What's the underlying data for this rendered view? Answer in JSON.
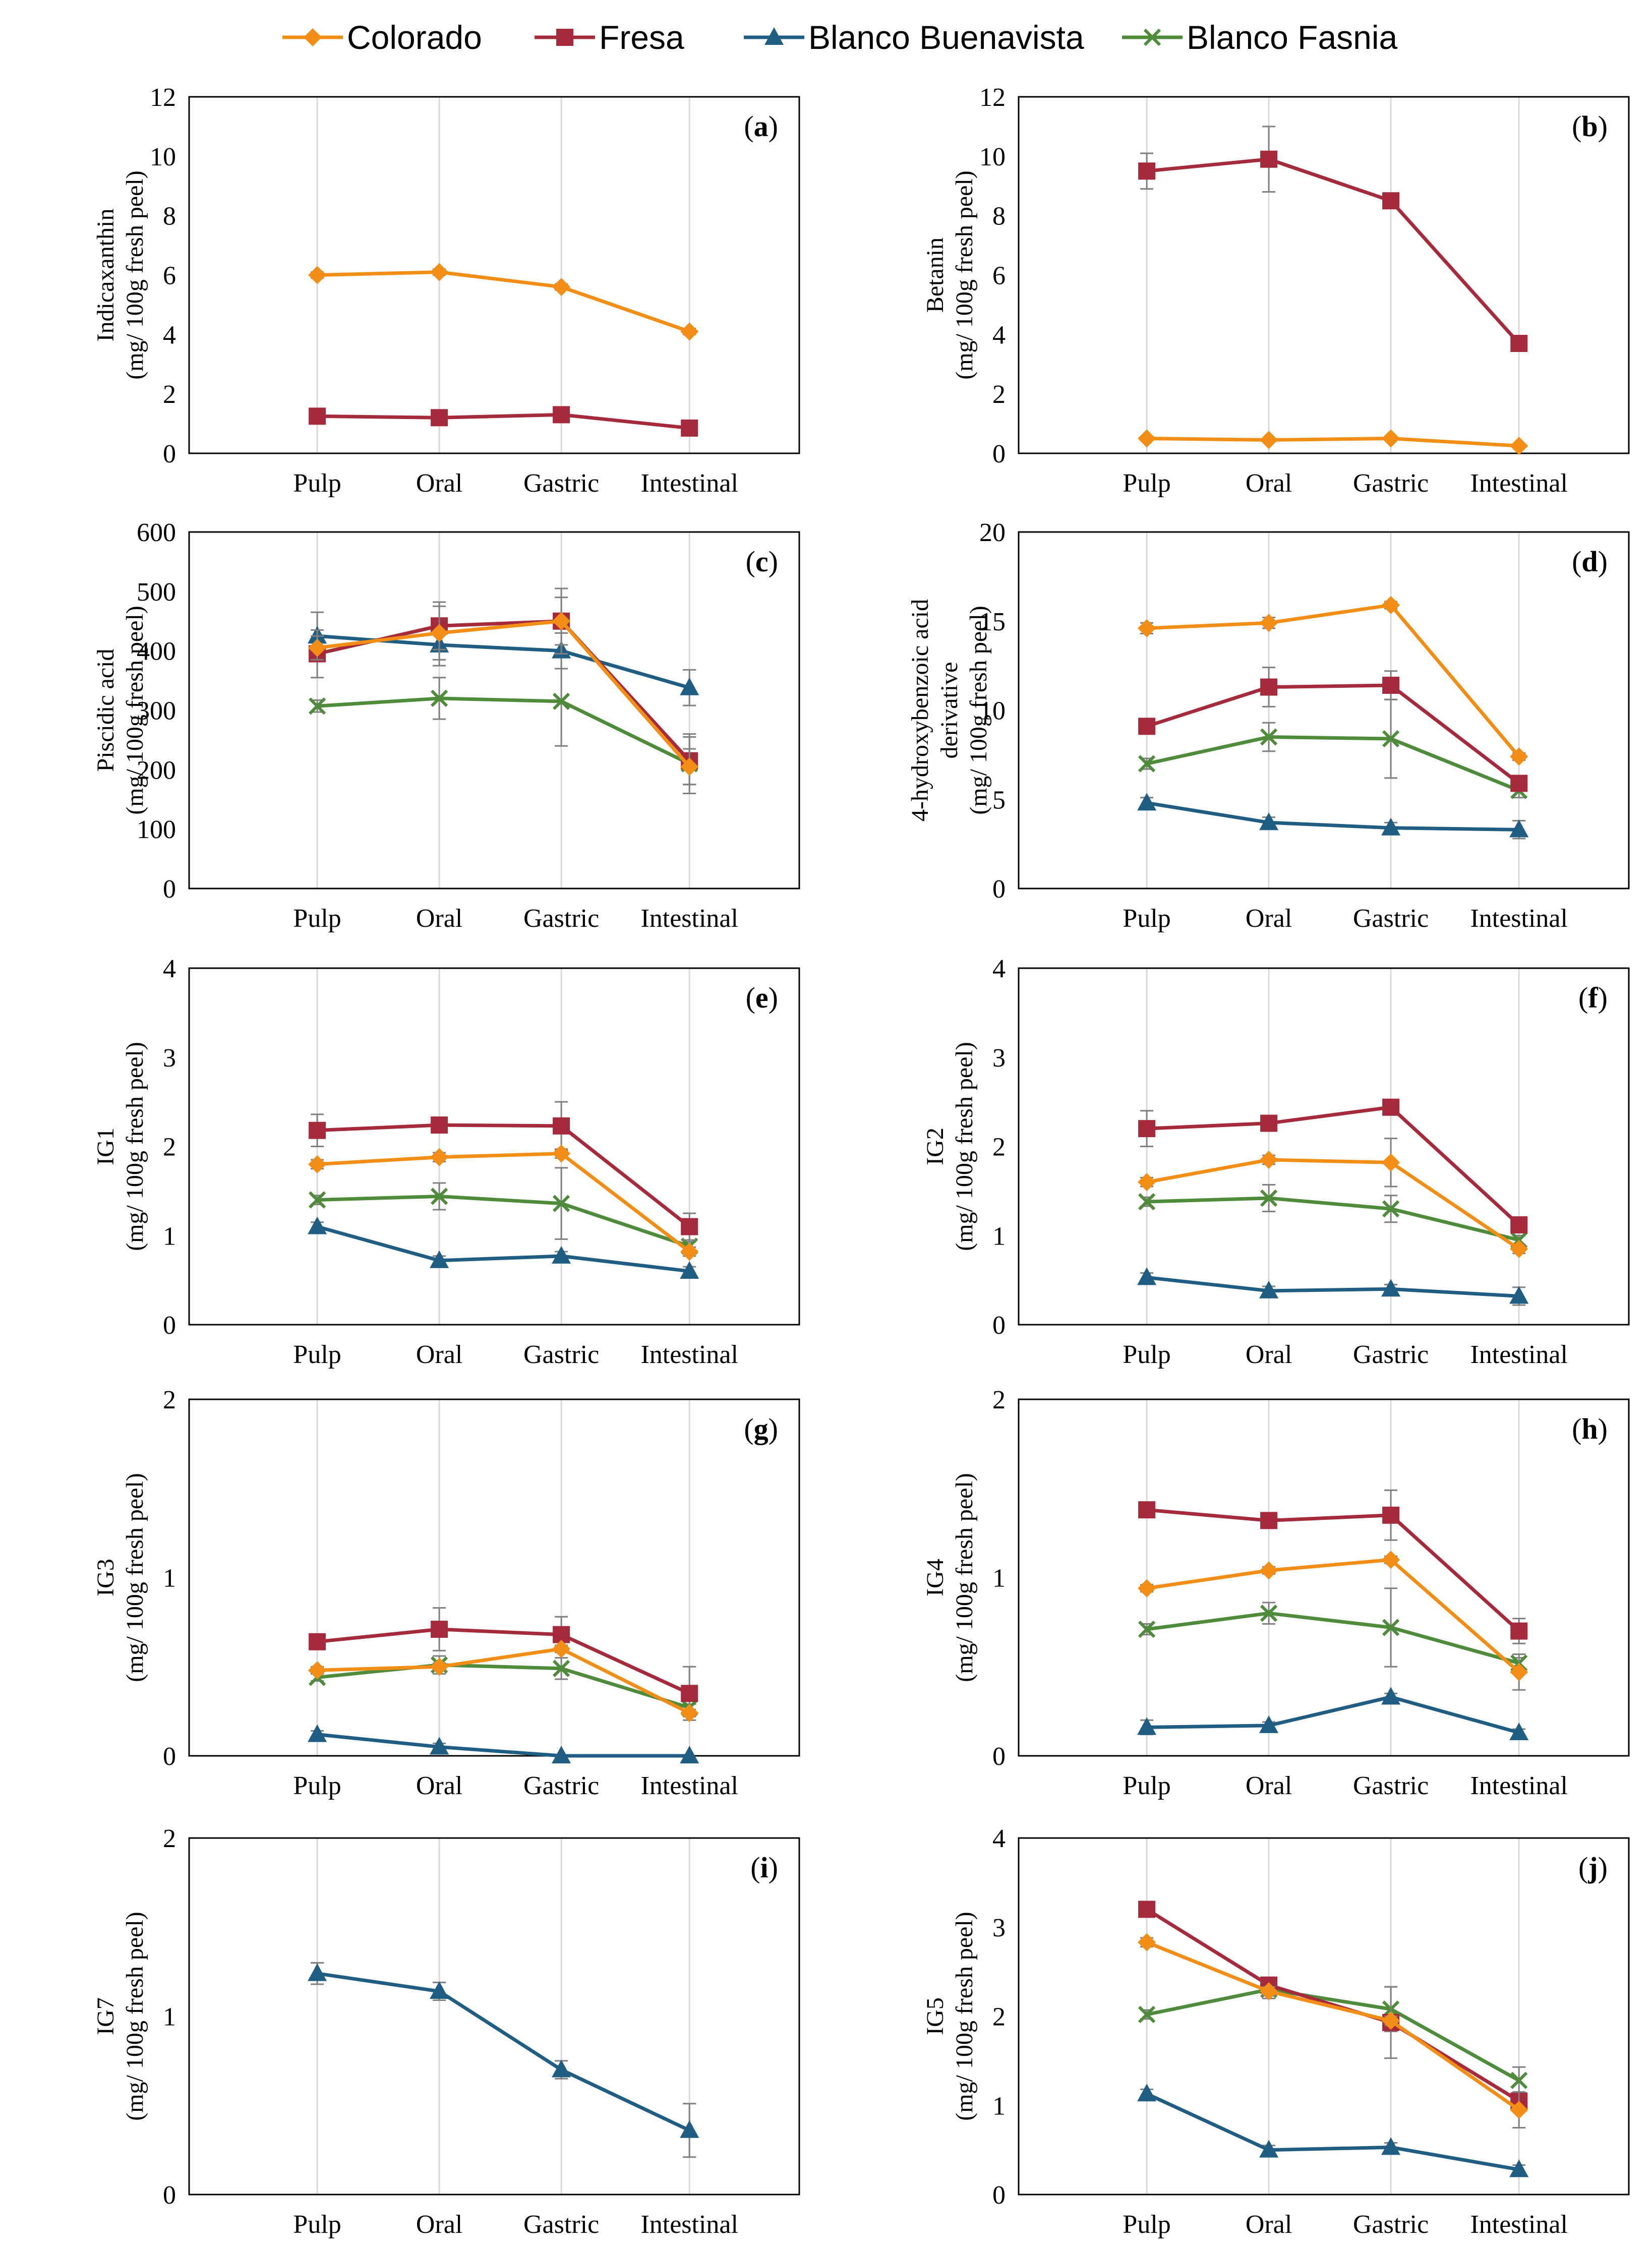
{
  "series_styles": [
    {
      "name": "Colorado",
      "color": "#F28E16",
      "marker": "diamond"
    },
    {
      "name": "Fresa",
      "color": "#A52A3C",
      "marker": "square"
    },
    {
      "name": "Blanco Buenavista",
      "color": "#1F5D82",
      "marker": "triangle"
    },
    {
      "name": "Blanco Fasnia",
      "color": "#4E8B3A",
      "marker": "x"
    }
  ],
  "chart_data": [
    {
      "type": "line",
      "panel": "a",
      "title": "",
      "xlabel": "",
      "ylabel": [
        "Indicaxanthin",
        "(mg/ 100g fresh peel)"
      ],
      "categories": [
        "Pulp",
        "Oral",
        "Gastric",
        "Intestinal"
      ],
      "ylim": [
        0,
        12
      ],
      "yticks": [
        0,
        2,
        4,
        6,
        8,
        10,
        12
      ],
      "series": [
        {
          "name": "Colorado",
          "values": [
            6.0,
            6.1,
            5.6,
            4.1
          ],
          "err": [
            0.1,
            0.1,
            0.1,
            0.1
          ]
        },
        {
          "name": "Fresa",
          "values": [
            1.25,
            1.2,
            1.3,
            0.85
          ],
          "err": [
            0.05,
            0.05,
            0.05,
            0.05
          ]
        }
      ]
    },
    {
      "type": "line",
      "panel": "b",
      "title": "",
      "xlabel": "",
      "ylabel": [
        "Betanin",
        "(mg/ 100g fresh peel)"
      ],
      "categories": [
        "Pulp",
        "Oral",
        "Gastric",
        "Intestinal"
      ],
      "ylim": [
        0,
        12
      ],
      "yticks": [
        0,
        2,
        4,
        6,
        8,
        10,
        12
      ],
      "series": [
        {
          "name": "Colorado",
          "values": [
            0.5,
            0.45,
            0.5,
            0.25
          ],
          "err": [
            0.05,
            0.05,
            0.05,
            0.05
          ]
        },
        {
          "name": "Fresa",
          "values": [
            9.5,
            9.9,
            8.5,
            3.7
          ],
          "err": [
            0.6,
            1.1,
            0.1,
            0.1
          ]
        }
      ]
    },
    {
      "type": "line",
      "panel": "c",
      "title": "",
      "xlabel": "",
      "ylabel": [
        "Piscidic acid",
        "(mg/ 100g fresh peel)"
      ],
      "categories": [
        "Pulp",
        "Oral",
        "Gastric",
        "Intestinal"
      ],
      "ylim": [
        0,
        600
      ],
      "yticks": [
        0,
        100,
        200,
        300,
        400,
        500,
        600
      ],
      "series": [
        {
          "name": "Colorado",
          "values": [
            405,
            430,
            450,
            205
          ],
          "err": [
            20,
            45,
            40,
            30
          ]
        },
        {
          "name": "Fresa",
          "values": [
            395,
            442,
            450,
            215
          ],
          "err": [
            40,
            40,
            55,
            40
          ]
        },
        {
          "name": "Blanco Buenavista",
          "values": [
            425,
            410,
            400,
            338
          ],
          "err": [
            40,
            35,
            30,
            30
          ]
        },
        {
          "name": "Blanco Fasnia",
          "values": [
            307,
            320,
            315,
            210
          ],
          "err": [
            10,
            35,
            75,
            50
          ]
        }
      ]
    },
    {
      "type": "line",
      "panel": "d",
      "title": "",
      "xlabel": "",
      "ylabel": [
        "4-hydroxybenzoic acid",
        "derivative",
        "(mg/ 100g fresh peel)"
      ],
      "categories": [
        "Pulp",
        "Oral",
        "Gastric",
        "Intestinal"
      ],
      "ylim": [
        0,
        20
      ],
      "yticks": [
        0,
        5,
        10,
        15,
        20
      ],
      "series": [
        {
          "name": "Colorado",
          "values": [
            14.6,
            14.9,
            15.9,
            7.4
          ],
          "err": [
            0.3,
            0.3,
            0.2,
            0.2
          ]
        },
        {
          "name": "Fresa",
          "values": [
            9.1,
            11.3,
            11.4,
            5.9
          ],
          "err": [
            0.3,
            1.1,
            0.8,
            0.3
          ]
        },
        {
          "name": "Blanco Buenavista",
          "values": [
            4.8,
            3.7,
            3.4,
            3.3
          ],
          "err": [
            0.3,
            0.3,
            0.3,
            0.5
          ]
        },
        {
          "name": "Blanco Fasnia",
          "values": [
            7.0,
            8.5,
            8.4,
            5.5
          ],
          "err": [
            0.3,
            0.8,
            2.2,
            0.4
          ]
        }
      ]
    },
    {
      "type": "line",
      "panel": "e",
      "title": "",
      "xlabel": "",
      "ylabel": [
        "IG1",
        "(mg/ 100g fresh peel)"
      ],
      "categories": [
        "Pulp",
        "Oral",
        "Gastric",
        "Intestinal"
      ],
      "ylim": [
        0,
        4
      ],
      "yticks": [
        0,
        1,
        2,
        3,
        4
      ],
      "series": [
        {
          "name": "Colorado",
          "values": [
            1.8,
            1.88,
            1.92,
            0.82
          ],
          "err": [
            0.05,
            0.05,
            0.05,
            0.05
          ]
        },
        {
          "name": "Fresa",
          "values": [
            2.18,
            2.24,
            2.23,
            1.1
          ],
          "err": [
            0.18,
            0.05,
            0.27,
            0.15
          ]
        },
        {
          "name": "Blanco Buenavista",
          "values": [
            1.1,
            0.72,
            0.77,
            0.6
          ],
          "err": [
            0.05,
            0.05,
            0.05,
            0.05
          ]
        },
        {
          "name": "Blanco Fasnia",
          "values": [
            1.4,
            1.44,
            1.36,
            0.88
          ],
          "err": [
            0.05,
            0.15,
            0.4,
            0.05
          ]
        }
      ]
    },
    {
      "type": "line",
      "panel": "f",
      "title": "",
      "xlabel": "",
      "ylabel": [
        "IG2",
        "(mg/ 100g fresh peel)"
      ],
      "categories": [
        "Pulp",
        "Oral",
        "Gastric",
        "Intestinal"
      ],
      "ylim": [
        0,
        4
      ],
      "yticks": [
        0,
        1,
        2,
        3,
        4
      ],
      "series": [
        {
          "name": "Colorado",
          "values": [
            1.6,
            1.85,
            1.82,
            0.85
          ],
          "err": [
            0.05,
            0.05,
            0.27,
            0.05
          ]
        },
        {
          "name": "Fresa",
          "values": [
            2.2,
            2.26,
            2.44,
            1.12
          ],
          "err": [
            0.2,
            0.05,
            0.05,
            0.05
          ]
        },
        {
          "name": "Blanco Buenavista",
          "values": [
            0.53,
            0.38,
            0.4,
            0.32
          ],
          "err": [
            0.05,
            0.05,
            0.05,
            0.1
          ]
        },
        {
          "name": "Blanco Fasnia",
          "values": [
            1.38,
            1.42,
            1.3,
            0.95
          ],
          "err": [
            0.05,
            0.15,
            0.15,
            0.05
          ]
        }
      ]
    },
    {
      "type": "line",
      "panel": "g",
      "title": "",
      "xlabel": "",
      "ylabel": [
        "IG3",
        "(mg/ 100g fresh peel)"
      ],
      "categories": [
        "Pulp",
        "Oral",
        "Gastric",
        "Intestinal"
      ],
      "ylim": [
        0,
        2
      ],
      "yticks": [
        0,
        1,
        2
      ],
      "series": [
        {
          "name": "Colorado",
          "values": [
            0.48,
            0.5,
            0.6,
            0.24
          ],
          "err": [
            0.02,
            0.02,
            0.02,
            0.02
          ]
        },
        {
          "name": "Fresa",
          "values": [
            0.64,
            0.71,
            0.68,
            0.35
          ],
          "err": [
            0.02,
            0.12,
            0.1,
            0.15
          ]
        },
        {
          "name": "Blanco Buenavista",
          "values": [
            0.12,
            0.05,
            0.0,
            0.0
          ],
          "err": [
            0.02,
            0.02,
            0.0,
            0.0
          ]
        },
        {
          "name": "Blanco Fasnia",
          "values": [
            0.44,
            0.51,
            0.49,
            0.27
          ],
          "err": [
            0.02,
            0.05,
            0.06,
            0.02
          ]
        }
      ]
    },
    {
      "type": "line",
      "panel": "h",
      "title": "",
      "xlabel": "",
      "ylabel": [
        "IG4",
        "(mg/ 100g fresh peel)"
      ],
      "categories": [
        "Pulp",
        "Oral",
        "Gastric",
        "Intestinal"
      ],
      "ylim": [
        0,
        2
      ],
      "yticks": [
        0,
        1,
        2
      ],
      "series": [
        {
          "name": "Colorado",
          "values": [
            0.94,
            1.04,
            1.1,
            0.47
          ],
          "err": [
            0.02,
            0.02,
            0.02,
            0.1
          ]
        },
        {
          "name": "Fresa",
          "values": [
            1.38,
            1.32,
            1.35,
            0.7
          ],
          "err": [
            0.02,
            0.02,
            0.14,
            0.07
          ]
        },
        {
          "name": "Blanco Buenavista",
          "values": [
            0.16,
            0.17,
            0.33,
            0.13
          ],
          "err": [
            0.04,
            0.02,
            0.02,
            0.02
          ]
        },
        {
          "name": "Blanco Fasnia",
          "values": [
            0.71,
            0.8,
            0.72,
            0.52
          ],
          "err": [
            0.03,
            0.06,
            0.22,
            0.03
          ]
        }
      ]
    },
    {
      "type": "line",
      "panel": "i",
      "title": "",
      "xlabel": "",
      "ylabel": [
        "IG7",
        "(mg/ 100g fresh peel)"
      ],
      "categories": [
        "Pulp",
        "Oral",
        "Gastric",
        "Intestinal"
      ],
      "ylim": [
        0,
        2
      ],
      "yticks": [
        0,
        1,
        2
      ],
      "series": [
        {
          "name": "Blanco Buenavista",
          "values": [
            1.24,
            1.14,
            0.7,
            0.36
          ],
          "err": [
            0.06,
            0.05,
            0.05,
            0.15
          ]
        }
      ]
    },
    {
      "type": "line",
      "panel": "j",
      "title": "",
      "xlabel": "",
      "ylabel": [
        "IG5",
        "(mg/ 100g fresh peel)"
      ],
      "categories": [
        "Pulp",
        "Oral",
        "Gastric",
        "Intestinal"
      ],
      "ylim": [
        0,
        4
      ],
      "yticks": [
        0,
        1,
        2,
        3,
        4
      ],
      "series": [
        {
          "name": "Colorado",
          "values": [
            2.83,
            2.28,
            1.95,
            0.95
          ],
          "err": [
            0.05,
            0.05,
            0.05,
            0.2
          ]
        },
        {
          "name": "Fresa",
          "values": [
            3.2,
            2.35,
            1.93,
            1.05
          ],
          "err": [
            0.05,
            0.05,
            0.4,
            0.1
          ]
        },
        {
          "name": "Blanco Buenavista",
          "values": [
            1.13,
            0.5,
            0.53,
            0.28
          ],
          "err": [
            0.05,
            0.05,
            0.05,
            0.05
          ]
        },
        {
          "name": "Blanco Fasnia",
          "values": [
            2.02,
            2.3,
            2.08,
            1.28
          ],
          "err": [
            0.05,
            0.1,
            0.25,
            0.15
          ]
        }
      ]
    }
  ]
}
